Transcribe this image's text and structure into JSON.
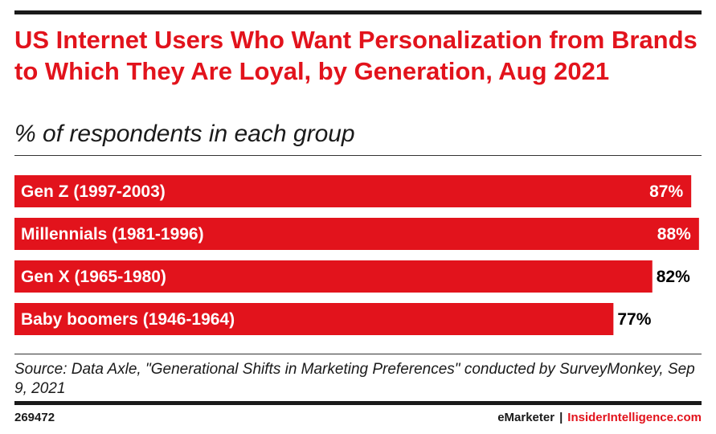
{
  "title": "US Internet Users Who Want Personalization from Brands to Which They Are Loyal, by Generation, Aug 2021",
  "subtitle": "% of respondents in each group",
  "source": "Source: Data Axle, \"Generational Shifts in Marketing Preferences\" conducted by SurveyMonkey, Sep 9, 2021",
  "footer": {
    "id": "269472",
    "brand_left": "eMarketer",
    "separator": "|",
    "brand_right": "InsiderIntelligence.com"
  },
  "colors": {
    "bar": "#e2131c",
    "label_inside": "#ffffff",
    "label_outside": "#000000"
  },
  "chart_data": {
    "type": "bar",
    "orientation": "horizontal",
    "categories": [
      "Gen Z (1997-2003)",
      "Millennials (1981-1996)",
      "Gen X (1965-1980)",
      "Baby boomers (1946-1964)"
    ],
    "values": [
      87,
      88,
      82,
      77
    ],
    "value_labels": [
      "87%",
      "88%",
      "82%",
      "77%"
    ],
    "xlim": [
      0,
      100
    ],
    "grid": false,
    "legend": "none"
  }
}
